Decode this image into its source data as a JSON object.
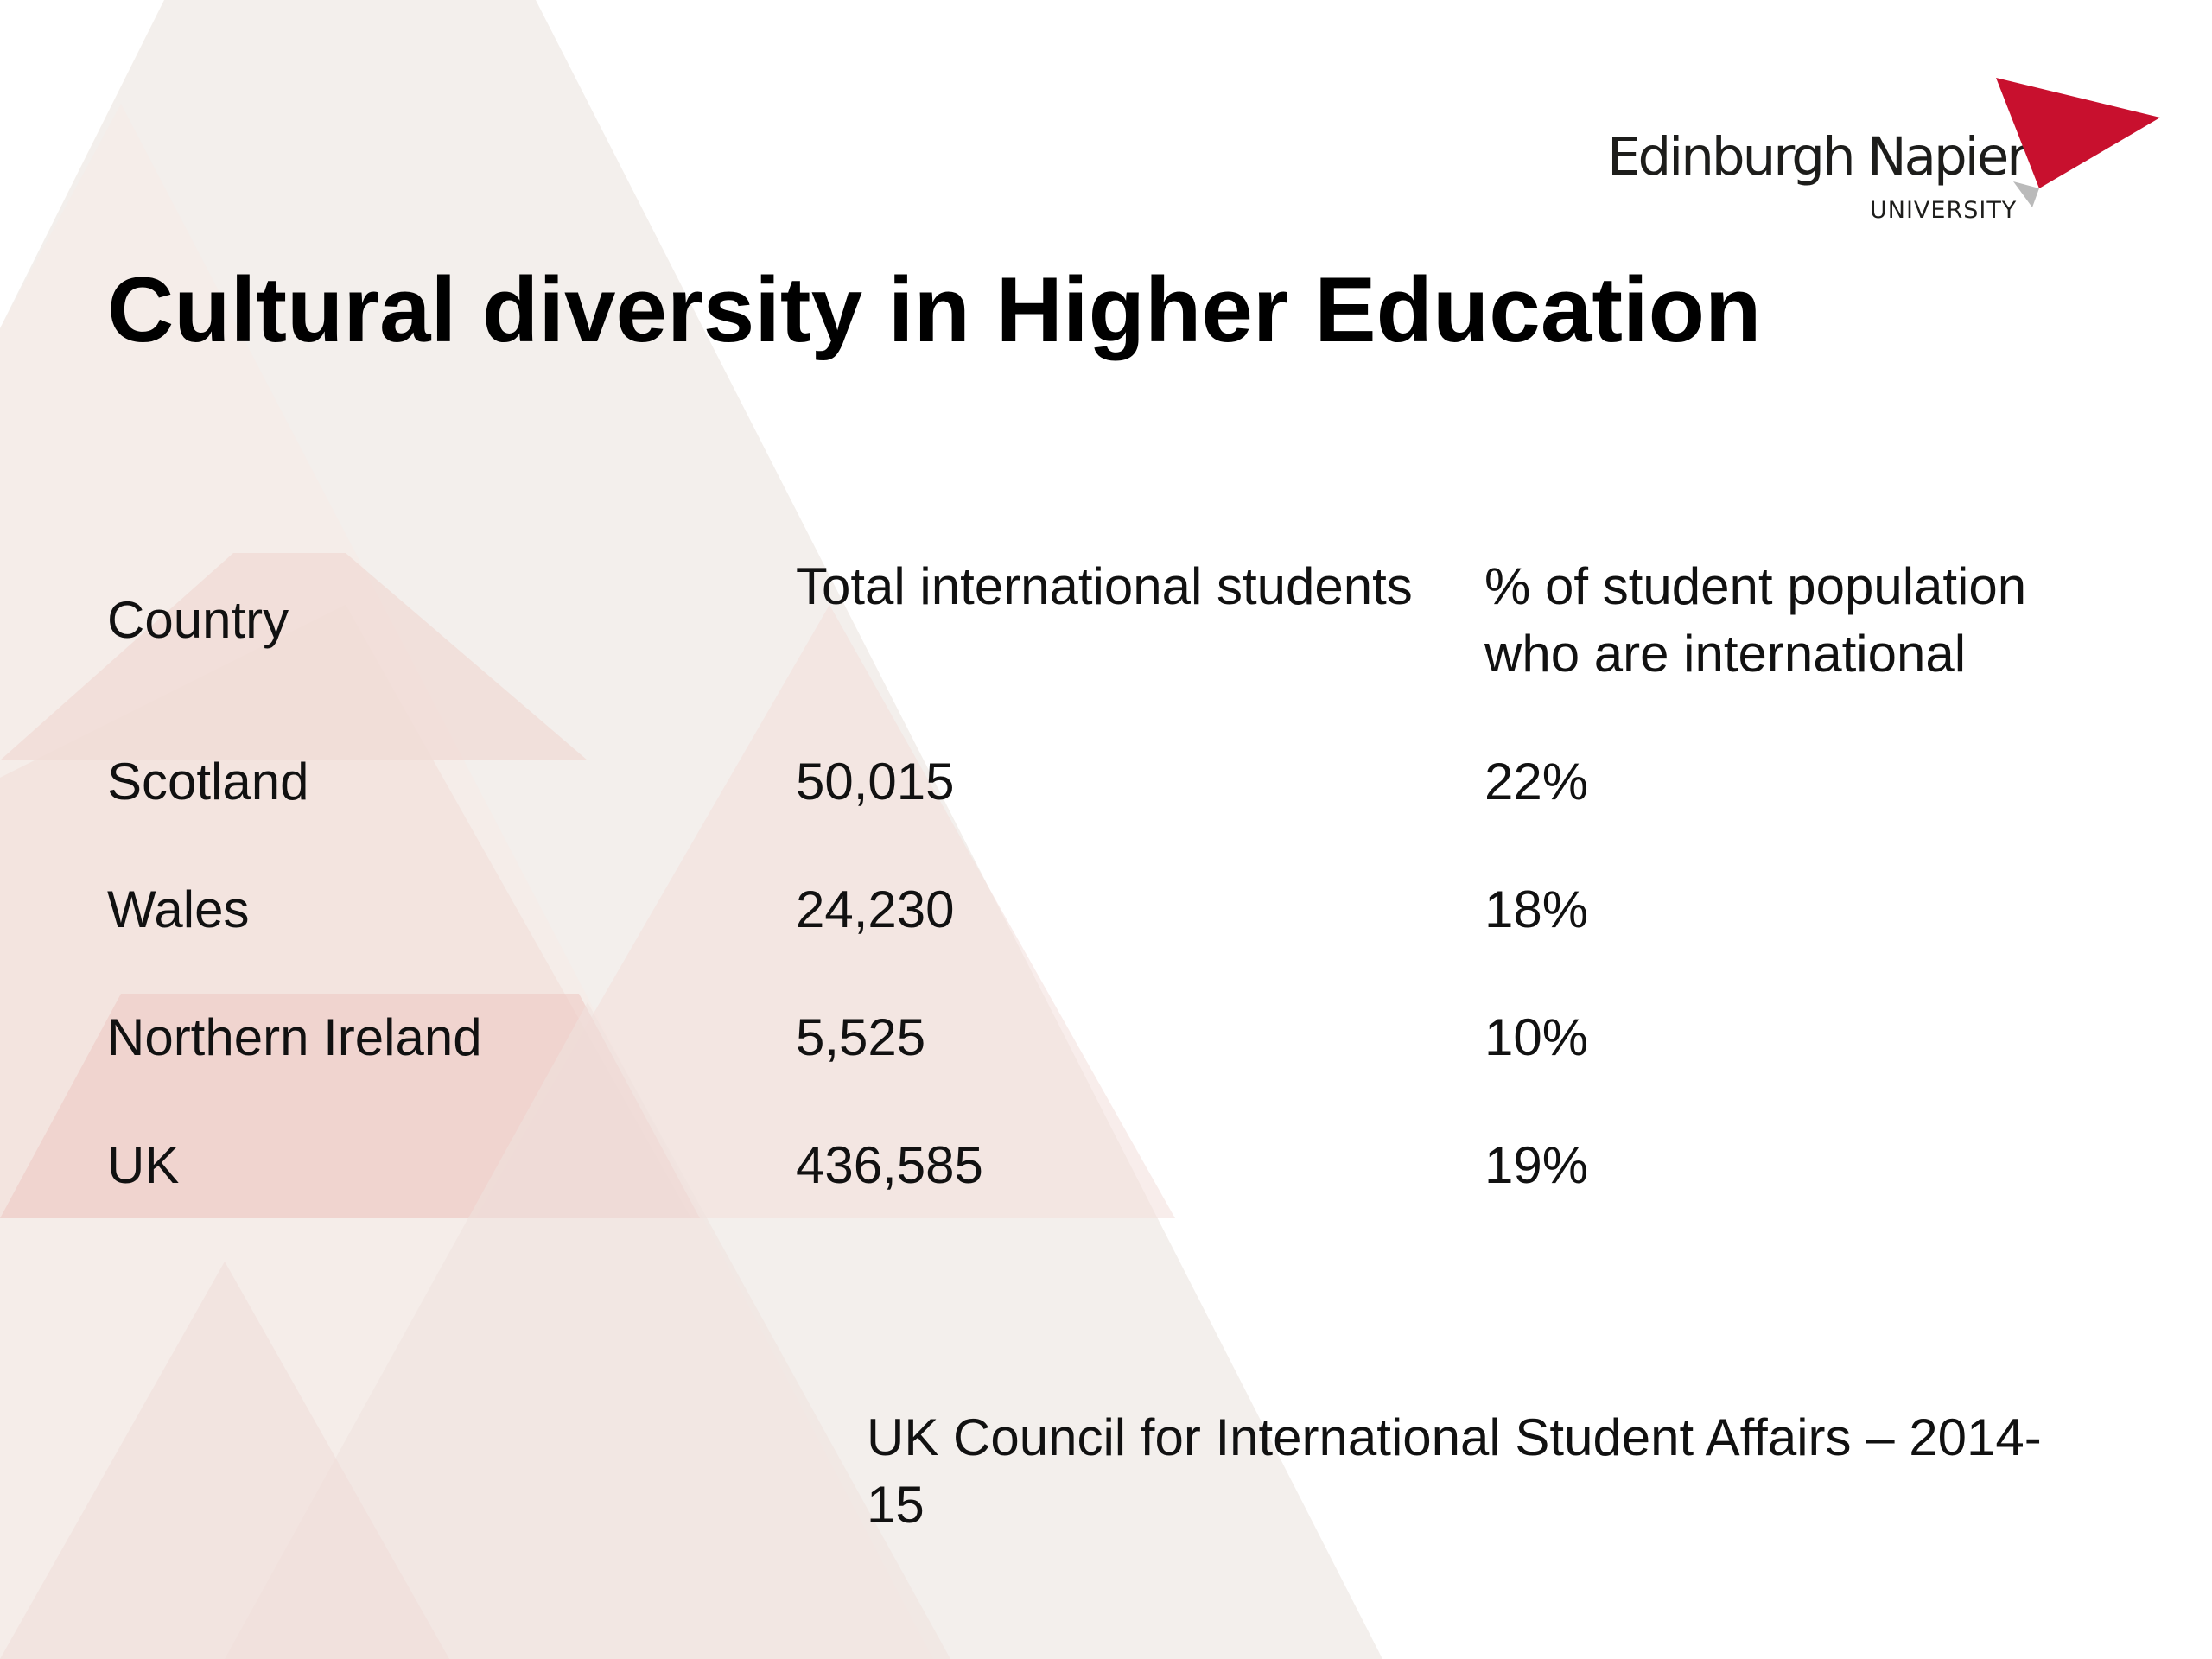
{
  "logo": {
    "name": "Edinburgh Napier",
    "subtitle": "UNIVERSITY",
    "accent_color": "#c8102e"
  },
  "title": "Cultural diversity in Higher Education",
  "table": {
    "headers": {
      "country": "Country",
      "total": "Total international students",
      "percent": "% of student population who are international"
    },
    "rows": [
      {
        "country": "Scotland",
        "total": "50,015",
        "percent": "22%"
      },
      {
        "country": "Wales",
        "total": "24,230",
        "percent": "18%"
      },
      {
        "country": "Northern Ireland",
        "total": "5,525",
        "percent": "10%"
      },
      {
        "country": "UK",
        "total": "436,585",
        "percent": "19%"
      }
    ]
  },
  "source": "UK Council for International Student Affairs – 2014-15"
}
